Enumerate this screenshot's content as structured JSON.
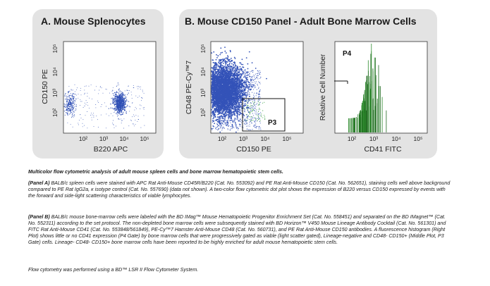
{
  "panel_a": {
    "title": "A. Mouse Splenocytes",
    "xlabel": "B220  APC",
    "ylabel": "CD150 PE",
    "x_ticks": [
      "10²",
      "10³",
      "10⁴",
      "10⁵"
    ],
    "y_ticks": [
      "10⁵",
      "10⁴",
      "10³",
      "10²"
    ]
  },
  "panel_b": {
    "title": "B. Mouse CD150 Panel - Adult Bone Marrow Cells",
    "dot_plot": {
      "xlabel": "CD150 PE",
      "ylabel": "CD48  PE-Cy™7",
      "x_ticks": [
        "10²",
        "10³",
        "10⁴",
        "10⁵"
      ],
      "y_ticks": [
        "10⁵",
        "10⁴",
        "10³",
        "10²"
      ],
      "gate_label": "P3"
    },
    "histogram": {
      "xlabel": "CD41  FITC",
      "ylabel": "Relative Cell Number",
      "x_ticks": [
        "10²",
        "10³",
        "10⁴",
        "10⁵"
      ],
      "gate_label": "P4"
    }
  },
  "caption": {
    "title": "Multicolor flow cytometric analysis of adult mouse spleen cells and bone marrow hematopoietic stem cells.",
    "panel_a_tag": "(Panel A)",
    "panel_a_text": " BALB/c spleen cells were stained with APC Rat Anti-Mouse CD45R/B220 (Cat. No. 553092) and PE Rat Anti-Mouse CD150 (Cat. No. 562651), staining cells well above background compared to PE Rat IgG2a, κ isotype control (Cat. No. 557690) (data not shown). A two-color flow cytometric dot plot shows the expression of B220 versus CD150 expressed by events with the forward and side-light scattering characteristics of viable lymphocytes.",
    "panel_b_tag": "(Panel B)",
    "panel_b_text": " BALB/c mouse bone-marrow cells were labeled with the BD IMag™ Mouse Hematopoietic Progenitor Enrichment Set (Cat. No. 558451) and separated on the BD IMagnet™ (Cat. No. 552311) according to the set protocol. The non-depleted bone marrow cells were subsequently stained with BD Horizon™ V450 Mouse Lineage Antibody Cocktail (Cat. No. 561301) and FITC Rat Anti-Mouse CD41 (Cat. No. 553848/561849), PE-Cy™7 Hamster Anti-Mouse CD48 (Cat. No. 560731), and PE Rat Anti-Mouse CD150 antibodies. A fluorescence histogram (Right Plot) shows little or no CD41 expression (P4 Gate) by bone marrow cells that were progressively gated as viable (light scatter gated), Lineage-negative and CD48- CD150+ (Middle Plot, P3 Gate) cells. Lineage- CD48- CD150+ bone marrow cells have been reported to be highly enriched for adult mouse hematopoietic stem cells.",
    "instrument": "Flow cytometry was performed using a BD™ LSR II Flow Cytometer System."
  }
}
